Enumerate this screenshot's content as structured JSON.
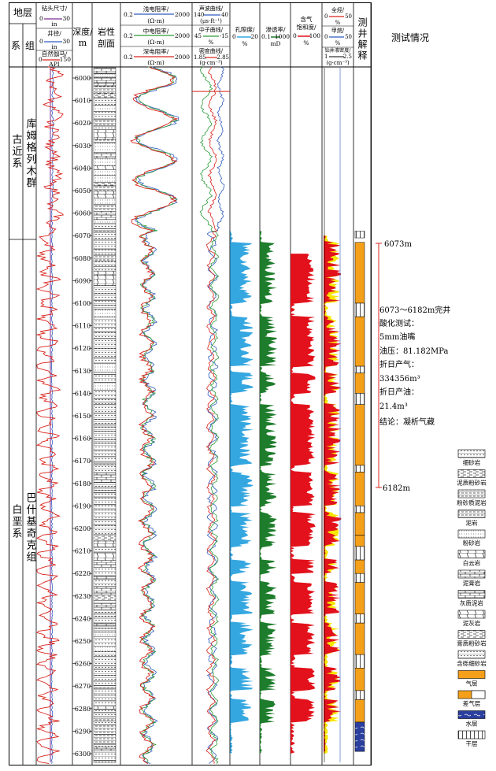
{
  "header": {
    "stratum": "地层",
    "system": "系",
    "group": "组",
    "track1": [
      {
        "label": "钻头尺寸/",
        "unit": "in",
        "min": "0",
        "max": "30",
        "color": "#7a2d8f"
      },
      {
        "label": "井径/",
        "unit": "in",
        "min": "0",
        "max": "30",
        "color": "#2f5bbd"
      },
      {
        "label": "自然伽马/",
        "unit": "API",
        "min": "0",
        "max": "150",
        "color": "#d9231c"
      }
    ],
    "depth": "深度/",
    "depth_unit": "m",
    "lithology": "岩性",
    "lithology2": "剖面",
    "resistivity": [
      {
        "label": "浅电阻率/",
        "unit": "(Ω·m)",
        "min": "0.2",
        "max": "2000",
        "color": "#2f5bbd"
      },
      {
        "label": "中电阻率/",
        "unit": "(Ω·m)",
        "min": "0.2",
        "max": "2000",
        "color": "#2e9b3a"
      },
      {
        "label": "深电阻率/",
        "unit": "(Ω·m)",
        "min": "0.2",
        "max": "2000",
        "color": "#d9231c"
      }
    ],
    "porosity_logs": [
      {
        "label": "声波曲线/",
        "unit": "(μs·ft⁻¹)",
        "min": "140",
        "max": "40",
        "color": "#2f5bbd"
      },
      {
        "label": "中子曲线/",
        "unit": "%",
        "min": "45",
        "max": "-15",
        "color": "#2e9b3a"
      },
      {
        "label": "密度曲线/",
        "unit": "(g·cm⁻³)",
        "min": "1.85",
        "max": "2.85",
        "color": "#d9231c"
      }
    ],
    "porosity": {
      "label": "孔隙度/",
      "unit": "%",
      "min": "0",
      "max": "20"
    },
    "permeability": {
      "label": "渗透率/",
      "unit": "mD",
      "min": "0.1",
      "max": "1000"
    },
    "saturation": {
      "label1": "含气",
      "label2": "饱和度/",
      "unit": "%",
      "min": "0",
      "max": "100"
    },
    "gas": [
      {
        "label": "全烃/",
        "unit": "%",
        "min": "0",
        "max": "50"
      },
      {
        "label": "甲烷/",
        "unit": "%",
        "min": "0",
        "max": "50"
      },
      {
        "label": "钻井液密度/",
        "unit": "(g·cm⁻³)",
        "min": "1",
        "max": "2.5"
      }
    ],
    "interpretation": "测井解释",
    "test": "测试情况"
  },
  "strata": [
    {
      "system": "古近系",
      "group": "库姆格列木群"
    },
    {
      "system": "白垩系",
      "group": "巴什基奇克组"
    }
  ],
  "depth_ticks": [
    "6000",
    "6010",
    "6020",
    "6030",
    "6040",
    "6050",
    "6060",
    "6070",
    "6080",
    "6090",
    "6100",
    "6110",
    "6120",
    "6130",
    "6140",
    "6150",
    "6160",
    "6170",
    "6180",
    "6190",
    "6200",
    "6210",
    "6220",
    "6230",
    "6240",
    "6250",
    "6260",
    "6270",
    "6280",
    "6290",
    "6300"
  ],
  "test": {
    "top_label": "6073m",
    "bottom_label": "6182m",
    "lines": [
      "6073～6182m完井",
      "酸化测试：",
      "5mm油嘴",
      "油压：81.182MPa",
      "折日产气：",
      "334356m³",
      "折日产油：",
      "21.4m³",
      "结论：凝析气藏"
    ]
  },
  "legend": [
    {
      "name": "细砂岩",
      "pattern": "fine-sand"
    },
    {
      "name": "泥质粉砂岩",
      "pattern": "muddy-silt"
    },
    {
      "name": "粉砂质泥岩",
      "pattern": "silty-mud"
    },
    {
      "name": "泥岩",
      "pattern": "mud"
    },
    {
      "name": "粉砂岩",
      "pattern": "silt"
    },
    {
      "name": "白云岩",
      "pattern": "dolomite"
    },
    {
      "name": "泥膏岩",
      "pattern": "mud-gypsum"
    },
    {
      "name": "灰质泥岩",
      "pattern": "lime-mud"
    },
    {
      "name": "泥灰岩",
      "pattern": "marl"
    },
    {
      "name": "膏质粉砂岩",
      "pattern": "gyp-silt"
    },
    {
      "name": "含砾细砂岩",
      "pattern": "pebbly-sand"
    },
    {
      "name": "气层",
      "pattern": "gas",
      "color": "#f5a01a"
    },
    {
      "name": "差气层",
      "pattern": "poor-gas",
      "color": "#f5a01a"
    },
    {
      "name": "水层",
      "pattern": "water",
      "color": "#2a3f9e"
    },
    {
      "name": "干层",
      "pattern": "dry"
    }
  ],
  "colors": {
    "porosity": "#35a7e0",
    "permeability": "#1e7d2c",
    "saturation": "#e2111b",
    "gas_fill": "#f7e600",
    "gas_layer": "#f5a01a",
    "water_layer": "#2a3f9e"
  },
  "chart_data": {
    "type": "well-log",
    "title": "",
    "x_unit": "m",
    "depth_range": [
      5995,
      6305
    ],
    "depth_ticks": [
      6000,
      6010,
      6020,
      6030,
      6040,
      6050,
      6060,
      6070,
      6080,
      6090,
      6100,
      6110,
      6120,
      6130,
      6140,
      6150,
      6160,
      6170,
      6180,
      6190,
      6200,
      6210,
      6220,
      6230,
      6240,
      6250,
      6260,
      6270,
      6280,
      6290,
      6300
    ],
    "formation_boundary_depth": 6068,
    "test_interval": [
      6073,
      6182
    ],
    "interpretation": [
      {
        "top": 6068,
        "bottom": 6071,
        "class": "dry"
      },
      {
        "top": 6073,
        "bottom": 6100,
        "class": "gas"
      },
      {
        "top": 6100,
        "bottom": 6106,
        "class": "dry"
      },
      {
        "top": 6106,
        "bottom": 6128,
        "class": "gas"
      },
      {
        "top": 6128,
        "bottom": 6131,
        "class": "dry"
      },
      {
        "top": 6131,
        "bottom": 6140,
        "class": "gas"
      },
      {
        "top": 6140,
        "bottom": 6145,
        "class": "dry"
      },
      {
        "top": 6145,
        "bottom": 6172,
        "class": "gas"
      },
      {
        "top": 6172,
        "bottom": 6175,
        "class": "dry"
      },
      {
        "top": 6175,
        "bottom": 6190,
        "class": "gas"
      },
      {
        "top": 6190,
        "bottom": 6193,
        "class": "dry"
      },
      {
        "top": 6193,
        "bottom": 6203,
        "class": "gas"
      },
      {
        "top": 6203,
        "bottom": 6208,
        "class": "poor-gas"
      },
      {
        "top": 6208,
        "bottom": 6214,
        "class": "dry"
      },
      {
        "top": 6214,
        "bottom": 6220,
        "class": "gas"
      },
      {
        "top": 6220,
        "bottom": 6224,
        "class": "dry"
      },
      {
        "top": 6224,
        "bottom": 6238,
        "class": "gas"
      },
      {
        "top": 6238,
        "bottom": 6242,
        "class": "dry"
      },
      {
        "top": 6242,
        "bottom": 6256,
        "class": "gas"
      },
      {
        "top": 6256,
        "bottom": 6262,
        "class": "dry"
      },
      {
        "top": 6262,
        "bottom": 6272,
        "class": "gas"
      },
      {
        "top": 6272,
        "bottom": 6276,
        "class": "dry"
      },
      {
        "top": 6276,
        "bottom": 6286,
        "class": "gas"
      },
      {
        "top": 6286,
        "bottom": 6299,
        "class": "water"
      }
    ]
  }
}
